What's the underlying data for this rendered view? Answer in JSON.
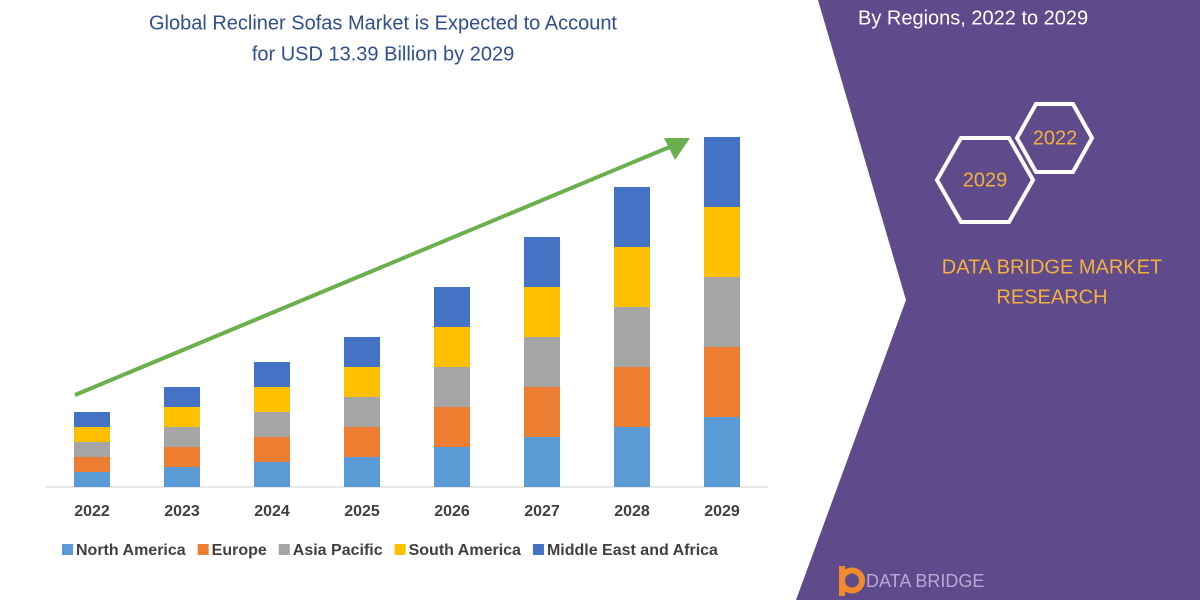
{
  "chart_data": {
    "type": "bar",
    "stacked": true,
    "title": [
      "Global Recliner Sofas Market is Expected to Account",
      "for USD 13.39 Billion by 2029"
    ],
    "categories": [
      "2022",
      "2023",
      "2024",
      "2025",
      "2026",
      "2027",
      "2028",
      "2029"
    ],
    "series": [
      {
        "name": "North America",
        "color": "#5b9bd5",
        "values": [
          15,
          20,
          25,
          30,
          40,
          50,
          60,
          70
        ]
      },
      {
        "name": "Europe",
        "color": "#ed7d31",
        "values": [
          15,
          20,
          25,
          30,
          40,
          50,
          60,
          70
        ]
      },
      {
        "name": "Asia Pacific",
        "color": "#a5a5a5",
        "values": [
          15,
          20,
          25,
          30,
          40,
          50,
          60,
          70
        ]
      },
      {
        "name": "South America",
        "color": "#ffc000",
        "values": [
          15,
          20,
          25,
          30,
          40,
          50,
          60,
          70
        ]
      },
      {
        "name": "Middle East and Africa",
        "color": "#4472c4",
        "values": [
          15,
          20,
          25,
          30,
          40,
          50,
          60,
          70
        ]
      }
    ],
    "ylim": [
      0,
      360
    ]
  },
  "panel": {
    "subtitle": "By Regions, 2022 to 2029",
    "hexagons": [
      "2029",
      "2022"
    ],
    "brand": [
      "DATA BRIDGE MARKET",
      "RESEARCH"
    ],
    "logo": "DATA BRIDGE"
  }
}
